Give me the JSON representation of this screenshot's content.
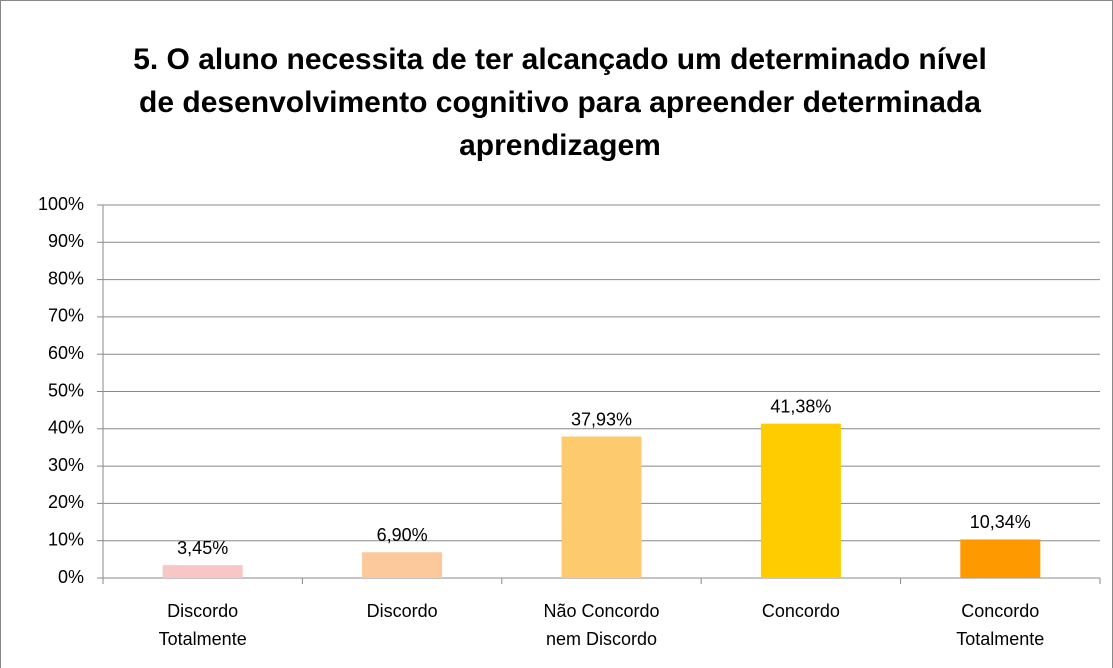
{
  "chart_data": {
    "type": "bar",
    "title": "5. O aluno necessita de ter alcançado um determinado nível de desenvolvimento cognitivo para apreender determinada aprendizagem",
    "categories": [
      "Discordo Totalmente",
      "Discordo",
      "Não Concordo nem Discordo",
      "Concordo",
      "Concordo Totalmente"
    ],
    "values": [
      3.45,
      6.9,
      37.93,
      41.38,
      10.34
    ],
    "value_labels": [
      "3,45%",
      "6,90%",
      "37,93%",
      "41,38%",
      "10,34%"
    ],
    "colors": [
      "#f9c6c6",
      "#fbc99b",
      "#fdcb6e",
      "#ffcc00",
      "#ff9900"
    ],
    "ylim": [
      0,
      100
    ],
    "yticks": [
      {
        "value": 0,
        "label": "0%"
      },
      {
        "value": 10,
        "label": "10%"
      },
      {
        "value": 20,
        "label": "20%"
      },
      {
        "value": 30,
        "label": "30%"
      },
      {
        "value": 40,
        "label": "40%"
      },
      {
        "value": 50,
        "label": "50%"
      },
      {
        "value": 60,
        "label": "60%"
      },
      {
        "value": 70,
        "label": "70%"
      },
      {
        "value": 80,
        "label": "80%"
      },
      {
        "value": 90,
        "label": "90%"
      },
      {
        "value": 100,
        "label": "100%"
      }
    ],
    "grid": true
  }
}
